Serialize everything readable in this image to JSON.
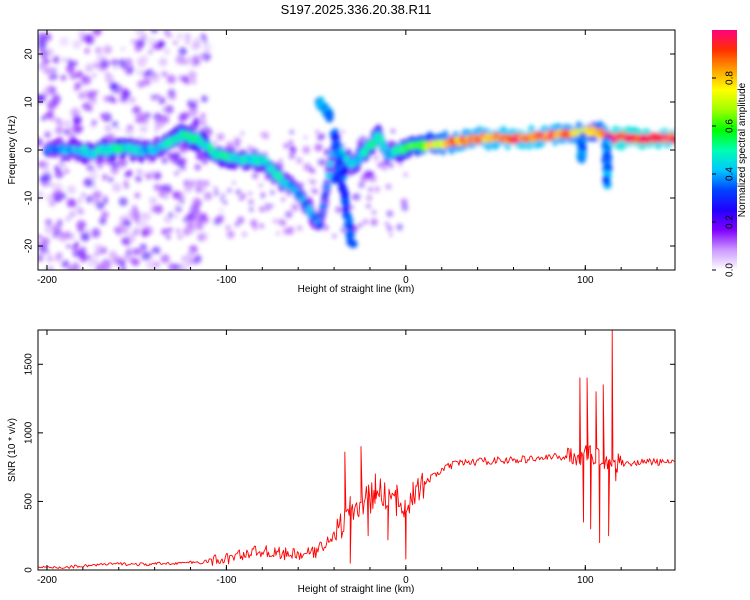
{
  "title": "S197.2025.336.20.38.R11",
  "chart_data": [
    {
      "type": "heatmap",
      "xlabel": "Height of straight line (km)",
      "ylabel": "Frequency (Hz)",
      "xlim": [
        -205,
        150
      ],
      "ylim": [
        -25,
        25
      ],
      "xticks": [
        -200,
        -100,
        0,
        100
      ],
      "yticks": [
        -20,
        -10,
        0,
        10,
        20
      ],
      "colorbar": {
        "label": "Normalized spectral amplitude",
        "range": [
          0,
          1
        ],
        "ticks": [
          "0.0",
          "0.2",
          "0.4",
          "0.6",
          "0.8"
        ],
        "colors": [
          "#ffffff",
          "#cc99ff",
          "#7f00ff",
          "#2200ff",
          "#0044ff",
          "#00c8ff",
          "#00ffb0",
          "#00ff00",
          "#a0ff00",
          "#ffff00",
          "#ffa000",
          "#ff3000",
          "#ff0080"
        ]
      },
      "ridge": [
        {
          "x": -200,
          "f": 0,
          "a": 0.35
        },
        {
          "x": -185,
          "f": 0,
          "a": 0.4
        },
        {
          "x": -175,
          "f": -0.5,
          "a": 0.45
        },
        {
          "x": -160,
          "f": 0.5,
          "a": 0.5
        },
        {
          "x": -150,
          "f": 0,
          "a": 0.45
        },
        {
          "x": -140,
          "f": 0,
          "a": 0.4
        },
        {
          "x": -125,
          "f": 3,
          "a": 0.5
        },
        {
          "x": -115,
          "f": 2,
          "a": 0.5
        },
        {
          "x": -105,
          "f": -1,
          "a": 0.5
        },
        {
          "x": -95,
          "f": -2,
          "a": 0.45
        },
        {
          "x": -80,
          "f": -2,
          "a": 0.45
        },
        {
          "x": -70,
          "f": -6,
          "a": 0.45
        },
        {
          "x": -62,
          "f": -8,
          "a": 0.4
        },
        {
          "x": -55,
          "f": -12,
          "a": 0.4
        },
        {
          "x": -48,
          "f": -16,
          "a": 0.35
        },
        {
          "x": -40,
          "f": 1,
          "a": 0.4
        },
        {
          "x": -30,
          "f": -3,
          "a": 0.45
        },
        {
          "x": -22,
          "f": 0,
          "a": 0.5
        },
        {
          "x": -15,
          "f": 3,
          "a": 0.5
        },
        {
          "x": -10,
          "f": -1,
          "a": 0.4
        },
        {
          "x": 0,
          "f": 0.5,
          "a": 0.55
        },
        {
          "x": 10,
          "f": 1,
          "a": 0.7
        },
        {
          "x": 25,
          "f": 1.5,
          "a": 0.85
        },
        {
          "x": 45,
          "f": 2.5,
          "a": 0.9
        },
        {
          "x": 65,
          "f": 2.5,
          "a": 0.95
        },
        {
          "x": 80,
          "f": 3,
          "a": 0.9
        },
        {
          "x": 95,
          "f": 3.5,
          "a": 0.85
        },
        {
          "x": 105,
          "f": 4,
          "a": 0.7
        },
        {
          "x": 115,
          "f": 2.5,
          "a": 1.0
        },
        {
          "x": 135,
          "f": 2.5,
          "a": 1.0
        },
        {
          "x": 150,
          "f": 2.5,
          "a": 0.95
        }
      ],
      "branches": [
        {
          "points": [
            [
              -48,
              10
            ],
            [
              -42,
              7
            ]
          ],
          "a": 0.35
        },
        {
          "points": [
            [
              -40,
              4
            ],
            [
              -30,
              -20
            ]
          ],
          "a": 0.3
        },
        {
          "points": [
            [
              112,
              2
            ],
            [
              112,
              -7
            ]
          ],
          "a": 0.35
        },
        {
          "points": [
            [
              98,
              3
            ],
            [
              98,
              -2
            ]
          ],
          "a": 0.35
        },
        {
          "points": [
            [
              -40,
              -6
            ],
            [
              -34,
              -4
            ]
          ],
          "a": 0.3
        }
      ],
      "noise_region": {
        "x": [
          -205,
          -110
        ],
        "f": [
          -25,
          25
        ],
        "a": 0.15
      }
    },
    {
      "type": "line",
      "xlabel": "Height of straight line (km)",
      "ylabel": "SNR (10 * v/v)",
      "xlim": [
        -205,
        150
      ],
      "ylim": [
        0,
        1750
      ],
      "xticks": [
        -200,
        -100,
        0,
        100
      ],
      "yticks": [
        0,
        500,
        1000,
        1500
      ],
      "series": [
        {
          "name": "SNR",
          "color": "#ff0000",
          "x": [
            -205,
            -190,
            -175,
            -160,
            -145,
            -130,
            -115,
            -100,
            -90,
            -80,
            -70,
            -60,
            -50,
            -45,
            -40,
            -35,
            -30,
            -25,
            -20,
            -15,
            -10,
            -5,
            0,
            5,
            10,
            15,
            20,
            25,
            30,
            40,
            50,
            60,
            70,
            80,
            90,
            95,
            100,
            105,
            108,
            110,
            112,
            114,
            116,
            118,
            125,
            135,
            150
          ],
          "y": [
            15,
            20,
            35,
            45,
            40,
            50,
            55,
            80,
            120,
            140,
            120,
            110,
            130,
            200,
            250,
            350,
            450,
            480,
            520,
            560,
            540,
            470,
            500,
            560,
            620,
            680,
            730,
            760,
            780,
            790,
            800,
            800,
            810,
            820,
            830,
            830,
            840,
            840,
            820,
            810,
            800,
            790,
            780,
            780,
            780,
            790,
            780
          ]
        }
      ],
      "spikes": [
        {
          "x": -34,
          "y": 860
        },
        {
          "x": -31,
          "y": 50
        },
        {
          "x": -25,
          "y": 900
        },
        {
          "x": -21,
          "y": 250
        },
        {
          "x": -17,
          "y": 700
        },
        {
          "x": -10,
          "y": 220
        },
        {
          "x": -5,
          "y": 620
        },
        {
          "x": 0,
          "y": 80
        },
        {
          "x": 4,
          "y": 640
        },
        {
          "x": 97,
          "y": 1400
        },
        {
          "x": 99,
          "y": 350
        },
        {
          "x": 101,
          "y": 1400
        },
        {
          "x": 103,
          "y": 300
        },
        {
          "x": 106,
          "y": 1300
        },
        {
          "x": 108,
          "y": 200
        },
        {
          "x": 110,
          "y": 1350
        },
        {
          "x": 113,
          "y": 250
        },
        {
          "x": 115,
          "y": 1750
        },
        {
          "x": 117,
          "y": 650
        }
      ]
    }
  ]
}
